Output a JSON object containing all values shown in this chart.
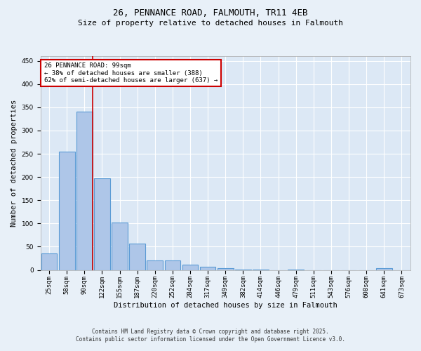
{
  "title": "26, PENNANCE ROAD, FALMOUTH, TR11 4EB",
  "subtitle": "Size of property relative to detached houses in Falmouth",
  "xlabel": "Distribution of detached houses by size in Falmouth",
  "ylabel": "Number of detached properties",
  "footer_line1": "Contains HM Land Registry data © Crown copyright and database right 2025.",
  "footer_line2": "Contains public sector information licensed under the Open Government Licence v3.0.",
  "categories": [
    "25sqm",
    "58sqm",
    "90sqm",
    "122sqm",
    "155sqm",
    "187sqm",
    "220sqm",
    "252sqm",
    "284sqm",
    "317sqm",
    "349sqm",
    "382sqm",
    "414sqm",
    "446sqm",
    "479sqm",
    "511sqm",
    "543sqm",
    "576sqm",
    "608sqm",
    "641sqm",
    "673sqm"
  ],
  "values": [
    35,
    255,
    340,
    197,
    102,
    57,
    21,
    21,
    11,
    7,
    4,
    1,
    1,
    0,
    1,
    0,
    0,
    0,
    0,
    4,
    0
  ],
  "bar_color": "#aec6e8",
  "bar_edge_color": "#5b9bd5",
  "vline_x": 2.45,
  "vline_color": "#cc0000",
  "annotation_text": "26 PENNANCE ROAD: 99sqm\n← 38% of detached houses are smaller (388)\n62% of semi-detached houses are larger (637) →",
  "annotation_box_color": "#ffffff",
  "annotation_box_edge": "#cc0000",
  "ylim": [
    0,
    460
  ],
  "bg_color": "#e8f0f8",
  "plot_bg_color": "#dce8f5",
  "grid_color": "#ffffff",
  "title_fontsize": 9,
  "subtitle_fontsize": 8,
  "axis_fontsize": 7.5,
  "tick_fontsize": 6.5,
  "annot_fontsize": 6.5,
  "footer_fontsize": 5.5
}
